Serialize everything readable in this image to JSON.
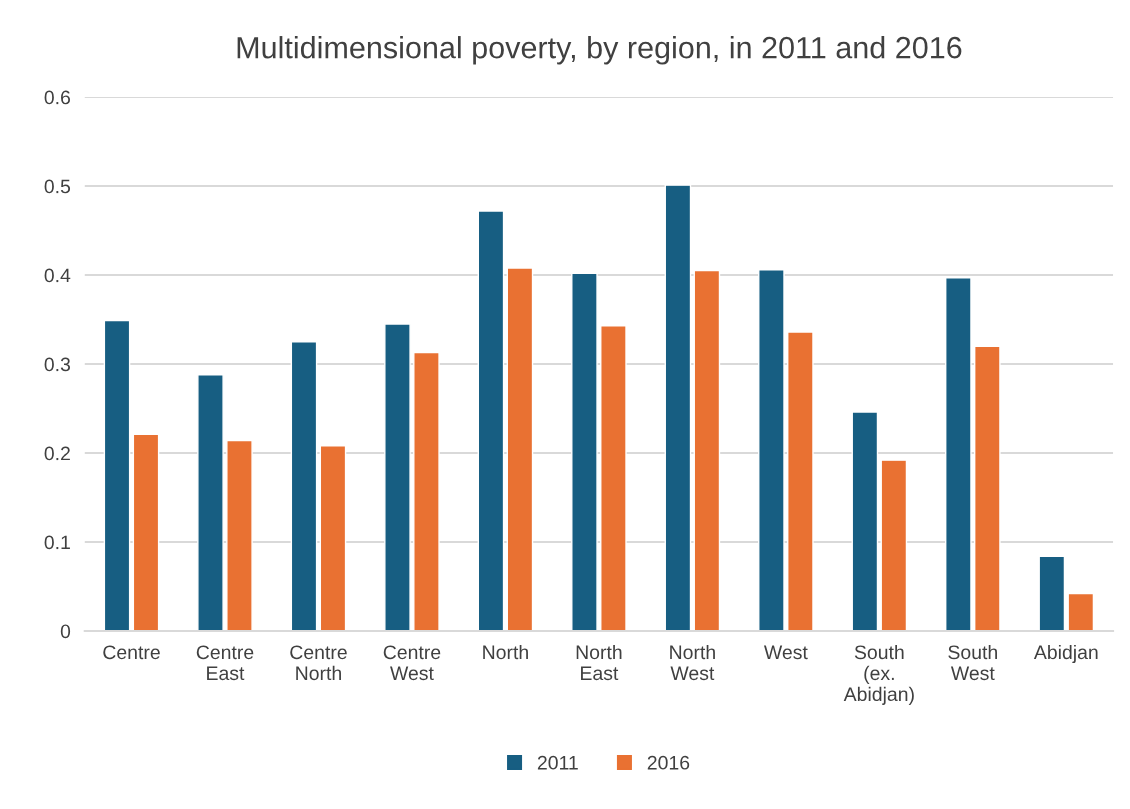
{
  "chart_data": {
    "type": "bar",
    "title": "Multidimensional poverty, by region, in 2011 and 2016",
    "categories": [
      "Centre",
      "Centre\nEast",
      "Centre\nNorth",
      "Centre\nWest",
      "North",
      "North\nEast",
      "North\nWest",
      "West",
      "South\n(ex.\nAbidjan)",
      "South\nWest",
      "Abidjan"
    ],
    "series": [
      {
        "name": "2011",
        "color": "#175e82",
        "values": [
          0.349,
          0.288,
          0.325,
          0.345,
          0.472,
          0.402,
          0.501,
          0.406,
          0.246,
          0.397,
          0.084
        ]
      },
      {
        "name": "2016",
        "color": "#e97132",
        "values": [
          0.221,
          0.214,
          0.208,
          0.313,
          0.408,
          0.343,
          0.405,
          0.336,
          0.192,
          0.32,
          0.042
        ]
      }
    ],
    "ylim": [
      0,
      0.6
    ],
    "yticks": [
      {
        "value": 0,
        "label": "0"
      },
      0.1,
      0.2,
      0.3,
      0.4,
      0.5,
      0.6
    ],
    "grid": "y",
    "legend": "bottom"
  }
}
